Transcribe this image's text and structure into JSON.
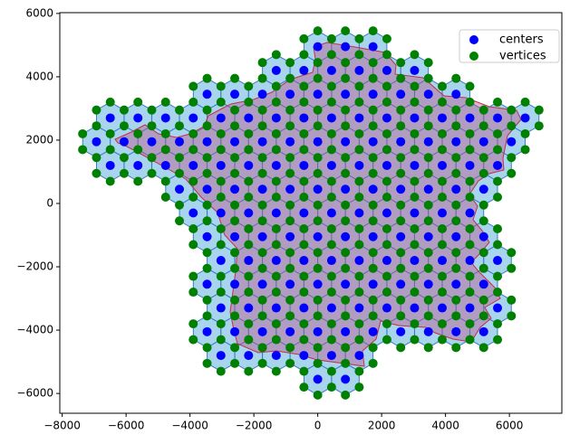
{
  "chart_data": {
    "type": "scatter",
    "xlim": [
      -8075,
      7642
    ],
    "ylim": [
      -6625,
      6025
    ],
    "xticks": [
      {
        "value": -8000,
        "label": "−8000"
      },
      {
        "value": -6000,
        "label": "−6000"
      },
      {
        "value": -4000,
        "label": "−4000"
      },
      {
        "value": -2000,
        "label": "−2000"
      },
      0,
      2000,
      4000,
      6000
    ],
    "yticks": [
      {
        "value": -6000,
        "label": "−6000"
      },
      {
        "value": -4000,
        "label": "−4000"
      },
      {
        "value": -2000,
        "label": "−2000"
      },
      0,
      2000,
      4000,
      6000
    ],
    "legend": "upper right",
    "series": [
      {
        "name": "centers",
        "color": "blue",
        "rows": [
          {
            "y": 4950,
            "x": [
              0,
              866,
              1732
            ]
          },
          {
            "y": 4200,
            "x": [
              -1299,
              -433,
              433,
              1299,
              2165,
              3031
            ]
          },
          {
            "y": 3450,
            "x": [
              -3464,
              -2598,
              -1732,
              -866,
              0,
              866,
              1732,
              2598,
              3464,
              4330
            ]
          },
          {
            "y": 2700,
            "x": [
              -6495,
              -5629,
              -4763,
              -3897,
              -3031,
              -2165,
              -1299,
              -433,
              433,
              1299,
              2165,
              3031,
              3897,
              4763,
              5629,
              6495
            ]
          },
          {
            "y": 1950,
            "x": [
              -6928,
              -6062,
              -5196,
              -4330,
              -3464,
              -2598,
              -1732,
              -866,
              0,
              866,
              1732,
              2598,
              3464,
              4330,
              5196,
              6062
            ]
          },
          {
            "y": 1200,
            "x": [
              -6495,
              -5629,
              -4763,
              -3897,
              -3031,
              -2165,
              -1299,
              -433,
              433,
              1299,
              2165,
              3031,
              3897,
              4763,
              5629
            ]
          },
          {
            "y": 450,
            "x": [
              -4330,
              -3464,
              -2598,
              -1732,
              -866,
              0,
              866,
              1732,
              2598,
              3464,
              4330,
              5196
            ]
          },
          {
            "y": -300,
            "x": [
              -3897,
              -3031,
              -2165,
              -1299,
              -433,
              433,
              1299,
              2165,
              3031,
              3897,
              4763
            ]
          },
          {
            "y": -1050,
            "x": [
              -3464,
              -2598,
              -1732,
              -866,
              0,
              866,
              1732,
              2598,
              3464,
              4330,
              5196
            ]
          },
          {
            "y": -1800,
            "x": [
              -3031,
              -2165,
              -1299,
              -433,
              433,
              1299,
              2165,
              3031,
              3897,
              4763,
              5629
            ]
          },
          {
            "y": -2550,
            "x": [
              -3464,
              -2598,
              -1732,
              -866,
              0,
              866,
              1732,
              2598,
              3464,
              4330,
              5196
            ]
          },
          {
            "y": -3300,
            "x": [
              -3031,
              -2165,
              -1299,
              -433,
              433,
              1299,
              2165,
              3031,
              3897,
              4763,
              5629
            ]
          },
          {
            "y": -4050,
            "x": [
              -3464,
              -2598,
              -1732,
              -866,
              0,
              866,
              1732,
              2598,
              3464,
              4330,
              5196
            ]
          },
          {
            "y": -4800,
            "x": [
              -3031,
              -2165,
              -1299,
              -433,
              433,
              1299
            ]
          },
          {
            "y": -5550,
            "x": [
              0,
              866
            ]
          }
        ]
      },
      {
        "name": "vertices",
        "color": "green",
        "rows": [
          {
            "y": 5450,
            "x": [
              0,
              866,
              1732
            ]
          },
          {
            "y": 5200,
            "x": [
              -433,
              433,
              1299,
              2165
            ]
          },
          {
            "y": 4700,
            "x": [
              -1299,
              -433,
              433,
              1299,
              2165,
              3031
            ]
          },
          {
            "y": 4450,
            "x": [
              -1732,
              -866,
              0,
              866,
              1732,
              2598,
              3464
            ]
          },
          {
            "y": 3950,
            "x": [
              -3464,
              -2598,
              -1732,
              -866,
              0,
              866,
              1732,
              2598,
              3464,
              4330
            ]
          },
          {
            "y": 3700,
            "x": [
              -3897,
              -3031,
              -2165,
              -1299,
              -433,
              433,
              1299,
              2165,
              3031,
              3897,
              4763
            ]
          },
          {
            "y": 3200,
            "x": [
              -6495,
              -5629,
              -4763,
              -3897,
              -3031,
              -2165,
              -1299,
              -433,
              433,
              1299,
              2165,
              3031,
              3897,
              4763,
              5629,
              6495
            ]
          },
          {
            "y": 2950,
            "x": [
              -6928,
              -6062,
              -5196,
              -4330,
              -3464,
              -2598,
              -1732,
              -866,
              0,
              866,
              1732,
              2598,
              3464,
              4330,
              5196,
              6062,
              6928
            ]
          },
          {
            "y": 2450,
            "x": [
              -6928,
              -6062,
              -5196,
              -4330,
              -3464,
              -2598,
              -1732,
              -866,
              0,
              866,
              1732,
              2598,
              3464,
              4330,
              5196,
              6062,
              6928
            ]
          },
          {
            "y": 2200,
            "x": [
              -7361,
              -6495,
              -5629,
              -4763,
              -3897,
              -3031,
              -2165,
              -1299,
              -433,
              433,
              1299,
              2165,
              3031,
              3897,
              4763,
              5629,
              6495
            ]
          },
          {
            "y": 1700,
            "x": [
              -7361,
              -6495,
              -5629,
              -4763,
              -3897,
              -3031,
              -2165,
              -1299,
              -433,
              433,
              1299,
              2165,
              3031,
              3897,
              4763,
              5629,
              6495
            ]
          },
          {
            "y": 1450,
            "x": [
              -6928,
              -6062,
              -5196,
              -4330,
              -3464,
              -2598,
              -1732,
              -866,
              0,
              866,
              1732,
              2598,
              3464,
              4330,
              5196,
              6062
            ]
          },
          {
            "y": 950,
            "x": [
              -6928,
              -6062,
              -5196,
              -4330,
              -3464,
              -2598,
              -1732,
              -866,
              0,
              866,
              1732,
              2598,
              3464,
              4330,
              5196,
              6062
            ]
          },
          {
            "y": 700,
            "x": [
              -6495,
              -5629,
              -4763,
              -3897,
              -3031,
              -2165,
              -1299,
              -433,
              433,
              1299,
              2165,
              3031,
              3897,
              4763,
              5629
            ]
          },
          {
            "y": 200,
            "x": [
              -4763,
              -3897,
              -3031,
              -2165,
              -1299,
              -433,
              433,
              1299,
              2165,
              3031,
              3897,
              4763,
              5629
            ]
          },
          {
            "y": -50,
            "x": [
              -4330,
              -3464,
              -2598,
              -1732,
              -866,
              0,
              866,
              1732,
              2598,
              3464,
              4330,
              5196
            ]
          },
          {
            "y": -550,
            "x": [
              -4330,
              -3464,
              -2598,
              -1732,
              -866,
              0,
              866,
              1732,
              2598,
              3464,
              4330,
              5196
            ]
          },
          {
            "y": -800,
            "x": [
              -3897,
              -3031,
              -2165,
              -1299,
              -433,
              433,
              1299,
              2165,
              3031,
              3897,
              4763,
              5629
            ]
          },
          {
            "y": -1300,
            "x": [
              -3897,
              -3031,
              -2165,
              -1299,
              -433,
              433,
              1299,
              2165,
              3031,
              3897,
              4763,
              5629
            ]
          },
          {
            "y": -1550,
            "x": [
              -3464,
              -2598,
              -1732,
              -866,
              0,
              866,
              1732,
              2598,
              3464,
              4330,
              5196,
              6062
            ]
          },
          {
            "y": -2050,
            "x": [
              -3464,
              -2598,
              -1732,
              -866,
              0,
              866,
              1732,
              2598,
              3464,
              4330,
              5196,
              6062
            ]
          },
          {
            "y": -2300,
            "x": [
              -3897,
              -3031,
              -2165,
              -1299,
              -433,
              433,
              1299,
              2165,
              3031,
              3897,
              4763,
              5629
            ]
          },
          {
            "y": -2800,
            "x": [
              -3897,
              -3031,
              -2165,
              -1299,
              -433,
              433,
              1299,
              2165,
              3031,
              3897,
              4763,
              5629
            ]
          },
          {
            "y": -3050,
            "x": [
              -3464,
              -2598,
              -1732,
              -866,
              0,
              866,
              1732,
              2598,
              3464,
              4330,
              5196,
              6062
            ]
          },
          {
            "y": -3550,
            "x": [
              -3464,
              -2598,
              -1732,
              -866,
              0,
              866,
              1732,
              2598,
              3464,
              4330,
              5196,
              6062
            ]
          },
          {
            "y": -3800,
            "x": [
              -3897,
              -3031,
              -2165,
              -1299,
              -433,
              433,
              1299,
              2165,
              3031,
              3897,
              4763,
              5629
            ]
          },
          {
            "y": -4300,
            "x": [
              -3897,
              -3031,
              -2165,
              -1299,
              -433,
              433,
              1299,
              2165,
              3031,
              3897,
              4763,
              5629
            ]
          },
          {
            "y": -4550,
            "x": [
              -3464,
              -2598,
              -1732,
              -866,
              0,
              866,
              1732,
              2598,
              3464,
              4330,
              5196
            ]
          },
          {
            "y": -5050,
            "x": [
              -3464,
              -2598,
              -1732,
              -866,
              0,
              866,
              1732
            ]
          },
          {
            "y": -5300,
            "x": [
              -3031,
              -2165,
              -1299,
              -433,
              433,
              1299
            ]
          },
          {
            "y": -5800,
            "x": [
              -433,
              433,
              1299
            ]
          },
          {
            "y": -6050,
            "x": [
              0,
              866
            ]
          }
        ]
      }
    ]
  }
}
